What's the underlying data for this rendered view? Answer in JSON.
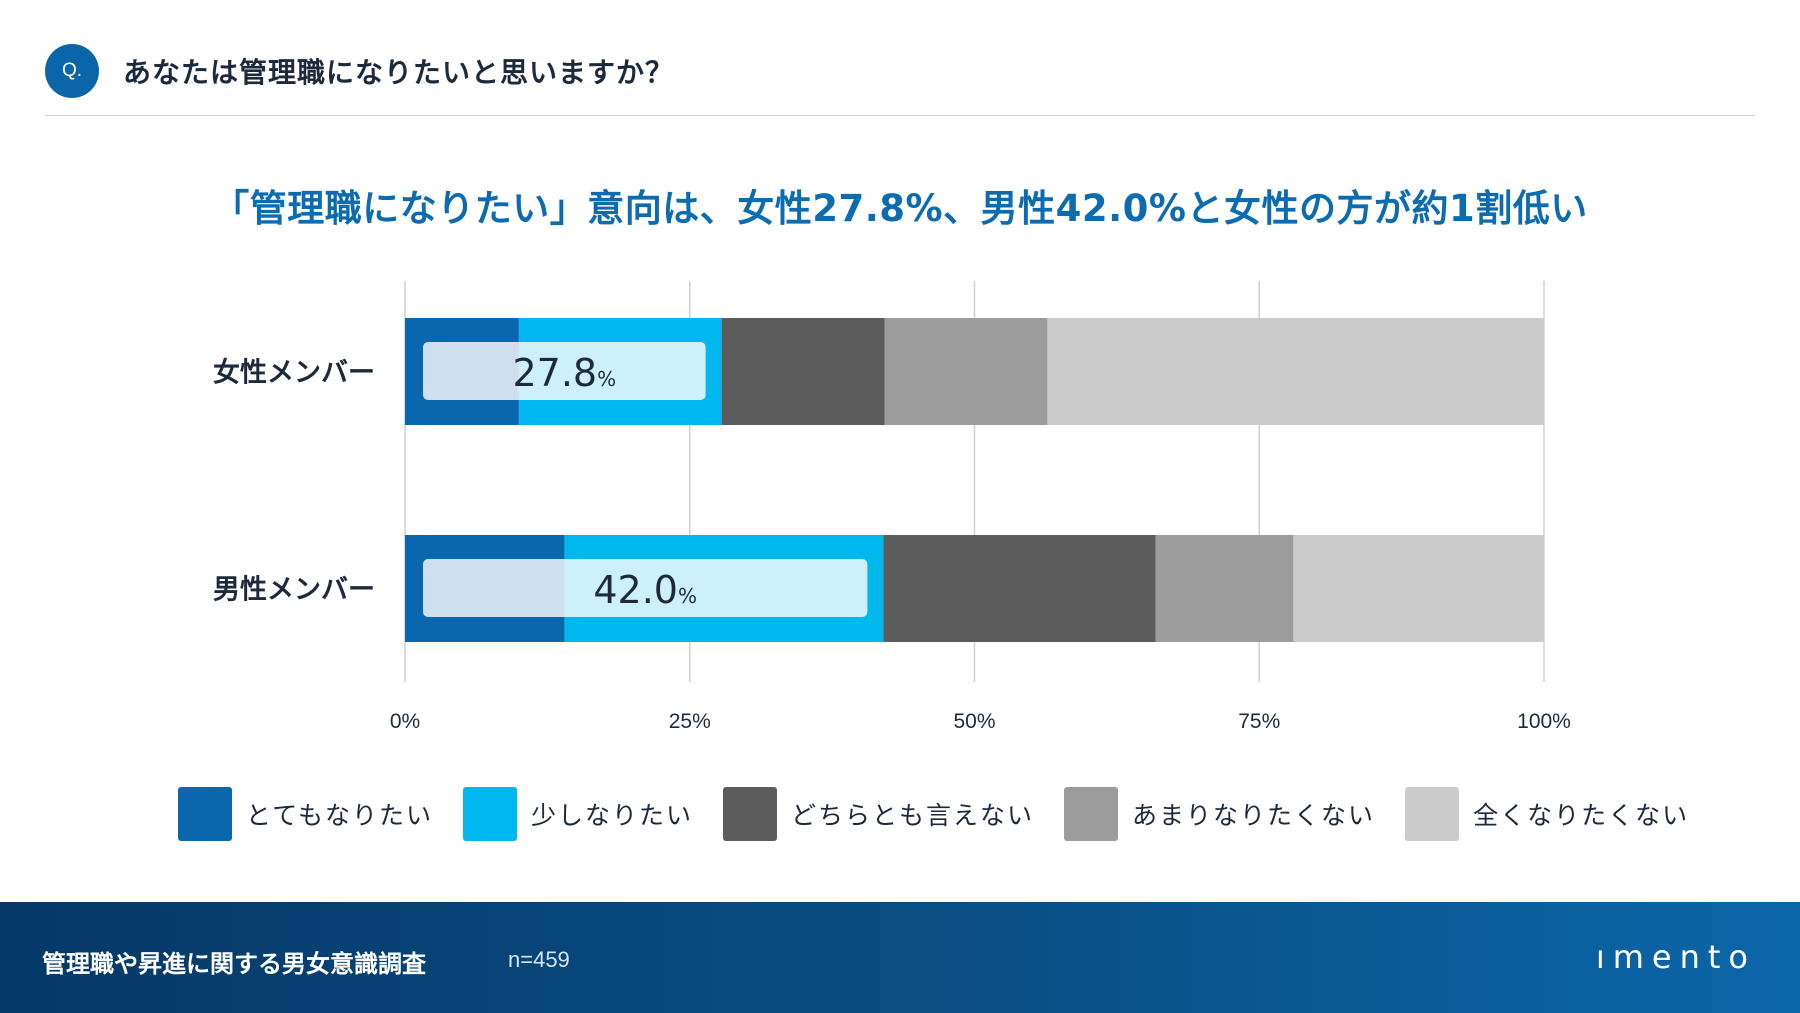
{
  "question": {
    "badge": "Q.",
    "text": "あなたは管理職になりたいと思いますか？"
  },
  "headline": "「管理職になりたい」意向は、女性27.8%、男性42.0%と女性の方が約1割低い",
  "chart_data": {
    "type": "bar",
    "orientation": "horizontal",
    "stacked": true,
    "categories": [
      "女性メンバー",
      "男性メンバー"
    ],
    "series": [
      {
        "name": "とてもなりたい",
        "color": "#0a67ad",
        "values": [
          10.0,
          14.0
        ]
      },
      {
        "name": "少しなりたい",
        "color": "#00b8ee",
        "values": [
          17.8,
          28.0
        ]
      },
      {
        "name": "どちらとも言えない",
        "color": "#5c5c5c",
        "values": [
          14.3,
          23.9
        ]
      },
      {
        "name": "あまりなりたくない",
        "color": "#9c9c9c",
        "values": [
          14.3,
          12.1
        ]
      },
      {
        "name": "全くなりたくない",
        "color": "#cbcbcb",
        "values": [
          43.6,
          22.0
        ]
      }
    ],
    "callouts": [
      {
        "value": "27.8",
        "unit": "%"
      },
      {
        "value": "42.0",
        "unit": "%"
      }
    ],
    "xticks": [
      "0%",
      "25%",
      "50%",
      "75%",
      "100%"
    ],
    "xlim": [
      0,
      100
    ],
    "grid": true,
    "legend_position": "bottom"
  },
  "footer": {
    "title": "管理職や昇進に関する男女意識調査",
    "n": "n=459",
    "logo": "ımento"
  }
}
